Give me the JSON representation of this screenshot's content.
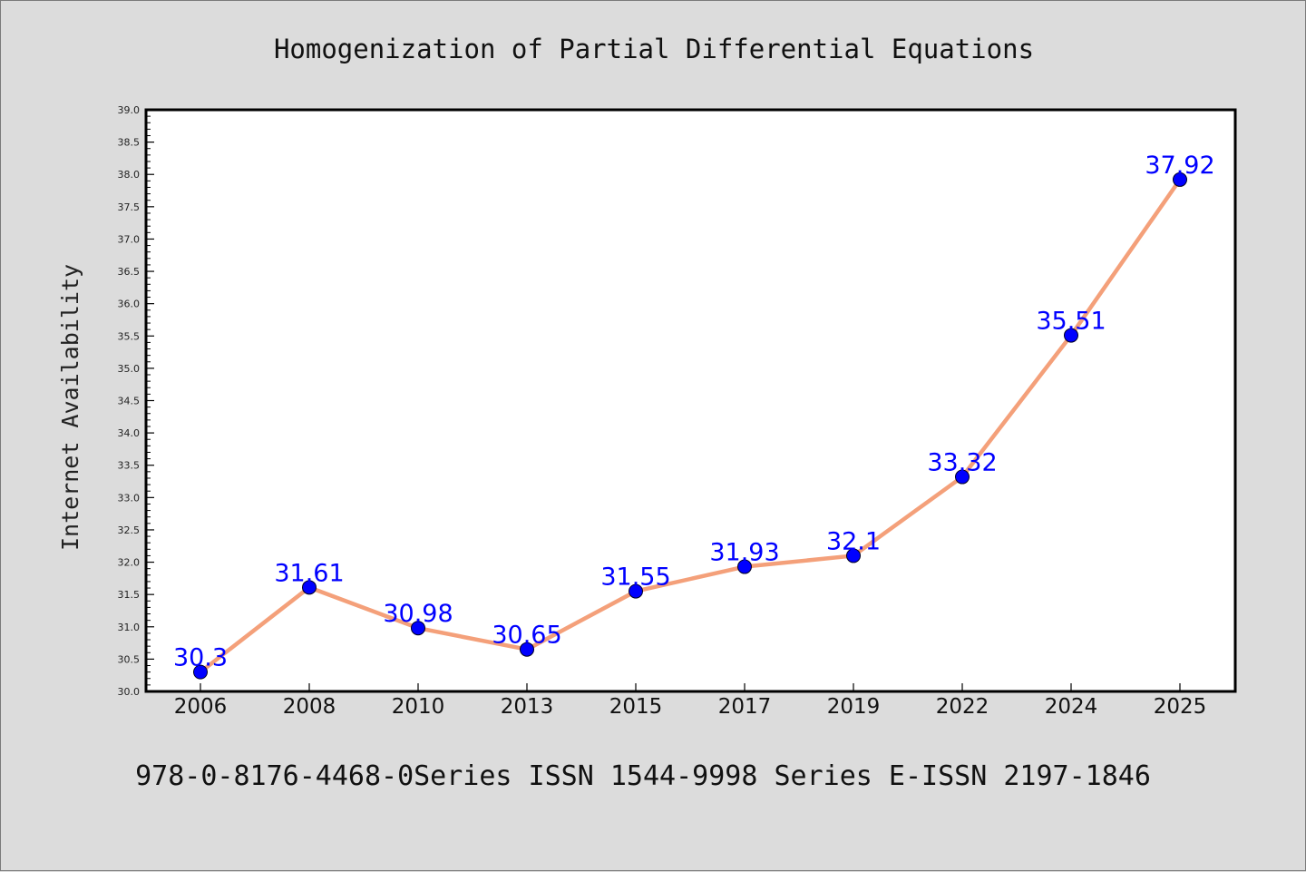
{
  "chart_data": {
    "type": "line",
    "title": "Homogenization of Partial Differential Equations",
    "xlabel": "",
    "ylabel": "Internet Availability",
    "categories": [
      "2006",
      "2008",
      "2010",
      "2013",
      "2015",
      "2017",
      "2019",
      "2022",
      "2024",
      "2025"
    ],
    "series": [
      {
        "values": [
          30.3,
          31.61,
          30.98,
          30.65,
          31.55,
          31.93,
          32.1,
          33.32,
          35.51,
          37.92
        ]
      }
    ],
    "data_labels": [
      "30.3",
      "31.61",
      "30.98",
      "30.65",
      "31.55",
      "31.93",
      "32.1",
      "33.32",
      "35.51",
      "37.92"
    ],
    "ylim": [
      30.0,
      39.0
    ],
    "yticks": [
      "30.0",
      "30.5",
      "31.0",
      "31.5",
      "32.0",
      "32.5",
      "33.0",
      "33.5",
      "34.0",
      "34.5",
      "35.0",
      "35.5",
      "36.0",
      "36.5",
      "37.0",
      "37.5",
      "38.0",
      "38.5",
      "39.0"
    ],
    "grid": false,
    "line_color": "#f4a07a",
    "marker_color": "#0000ff",
    "label_color": "#0000ff"
  },
  "footer": {
    "text": "978-0-8176-4468-0Series ISSN 1544-9998 Series E-ISSN 2197-1846"
  }
}
